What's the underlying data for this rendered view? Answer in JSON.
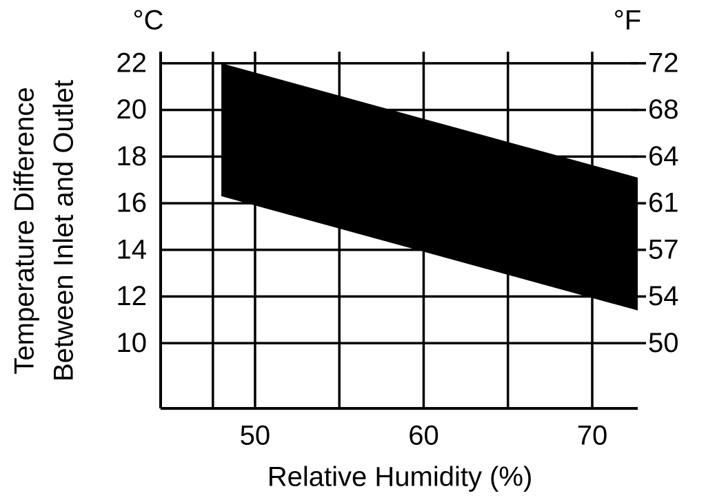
{
  "chart_data": {
    "type": "band",
    "y_unit_left": "°C",
    "y_unit_right": "°F",
    "ylabel": [
      "Temperature Difference",
      "Between Inlet and Outlet"
    ],
    "xlabel": "Relative Humidity (%)",
    "x": [
      48,
      72.7
    ],
    "upper": [
      22.0,
      17.1
    ],
    "lower": [
      16.3,
      11.4
    ],
    "color": "#000000",
    "xlim": [
      44.4,
      72.7
    ],
    "xticks": [
      50,
      60,
      70
    ],
    "xgrid": [
      47.5,
      50,
      55,
      60,
      65,
      70
    ],
    "ylim": [
      7.2,
      22.5
    ],
    "yticks": [
      22,
      20,
      18,
      16,
      14,
      12,
      10
    ],
    "y2lim": [
      44.96,
      72.5
    ],
    "y2ticks": [
      {
        "value": 71.6,
        "label": "72"
      },
      {
        "value": 68,
        "label": "68"
      },
      {
        "value": 64.4,
        "label": "64"
      },
      {
        "value": 60.8,
        "label": "61"
      },
      {
        "value": 57.2,
        "label": "57"
      },
      {
        "value": 53.6,
        "label": "54"
      },
      {
        "value": 50,
        "label": "50"
      }
    ],
    "grid": true
  }
}
